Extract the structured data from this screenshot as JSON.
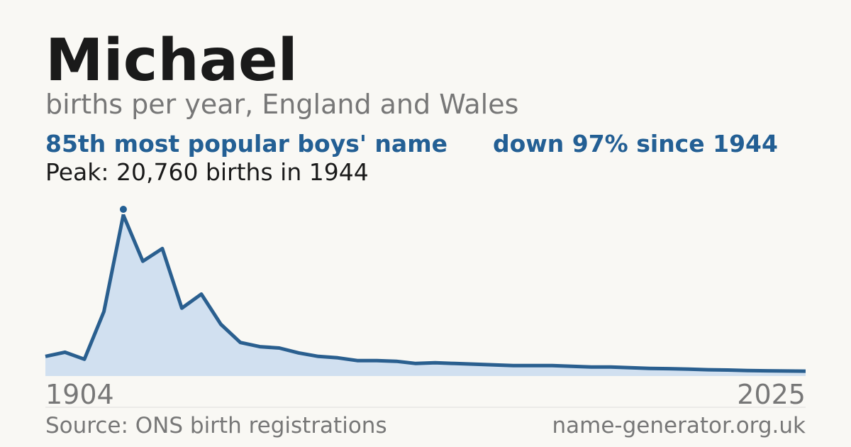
{
  "chart_data": {
    "type": "area",
    "title": "Michael",
    "subtitle": "births per year, England and Wales",
    "rank": "85th most popular boys' name",
    "change": "down 97% since 1944",
    "peak": "Peak: 20,760 births in 1944",
    "source": "Source: ONS birth registrations",
    "site": "name-generator.org.uk",
    "categories": [
      "1904",
      null,
      null,
      null,
      null,
      null,
      null,
      null,
      null,
      null,
      null,
      null,
      null,
      null,
      null,
      null,
      null,
      null,
      null,
      null,
      null,
      null,
      null,
      null,
      null,
      null,
      null,
      null,
      null,
      null,
      null,
      null,
      null,
      null,
      null,
      null,
      null,
      null,
      null,
      "2025"
    ],
    "values": [
      2530,
      3070,
      2170,
      8300,
      20760,
      14800,
      16430,
      8750,
      10560,
      6680,
      4330,
      3790,
      3610,
      2980,
      2530,
      2350,
      1990,
      1990,
      1900,
      1620,
      1710,
      1620,
      1530,
      1440,
      1350,
      1350,
      1350,
      1260,
      1170,
      1170,
      1080,
      990,
      950,
      900,
      810,
      780,
      700,
      680,
      650,
      630
    ],
    "color": "#2a5f8f",
    "fill": "#d1e0f0",
    "ylim": [
      0,
      20760
    ]
  }
}
